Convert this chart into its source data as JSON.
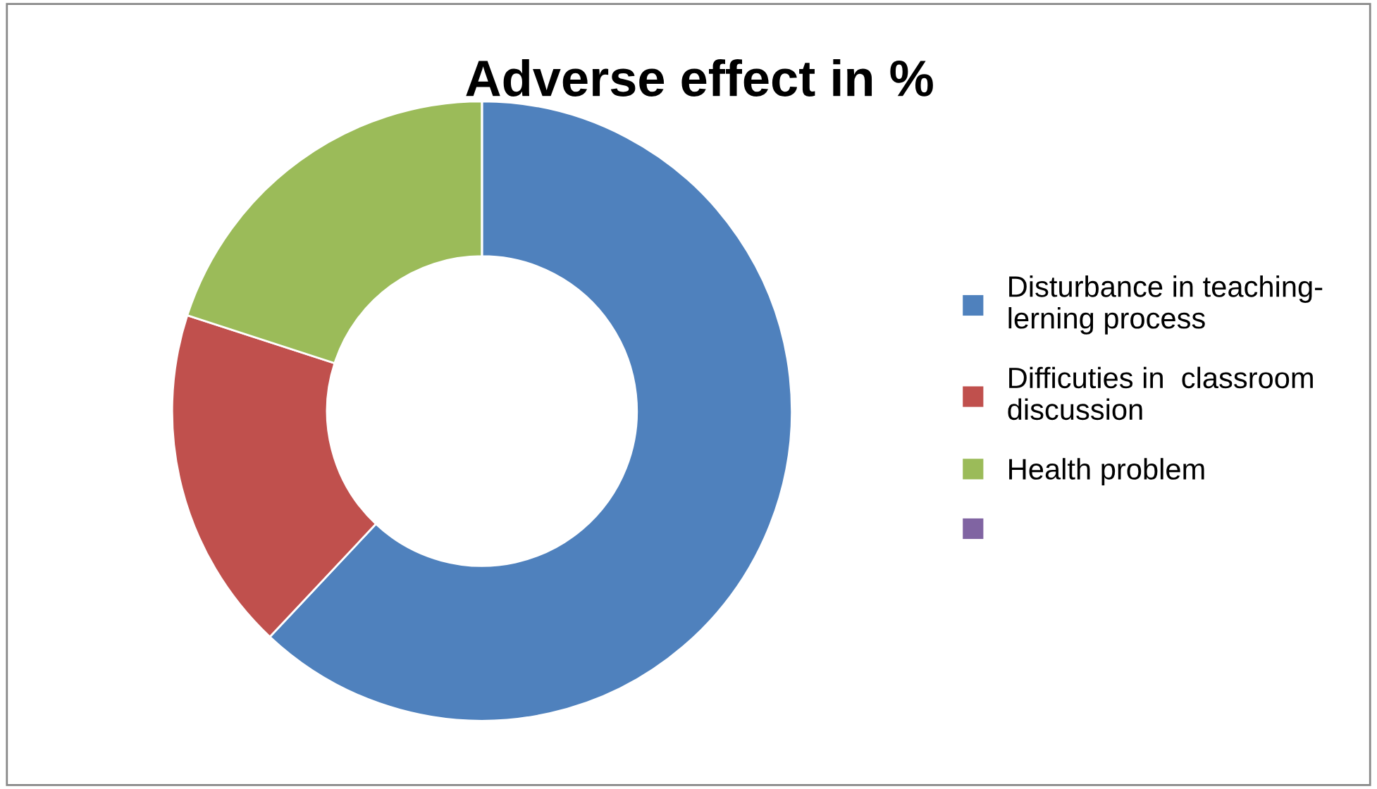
{
  "chart_data": {
    "type": "donut",
    "title": "Adverse effect in %",
    "categories": [
      "Disturbance in teaching-\nlerning process",
      "Difficuties in  classroom\ndiscussion",
      "Health problem",
      null
    ],
    "values": [
      62,
      18,
      20,
      0
    ],
    "colors": [
      "#4f81bd",
      "#c0504d",
      "#9bbb59",
      "#8064a2"
    ],
    "legend": "right"
  }
}
